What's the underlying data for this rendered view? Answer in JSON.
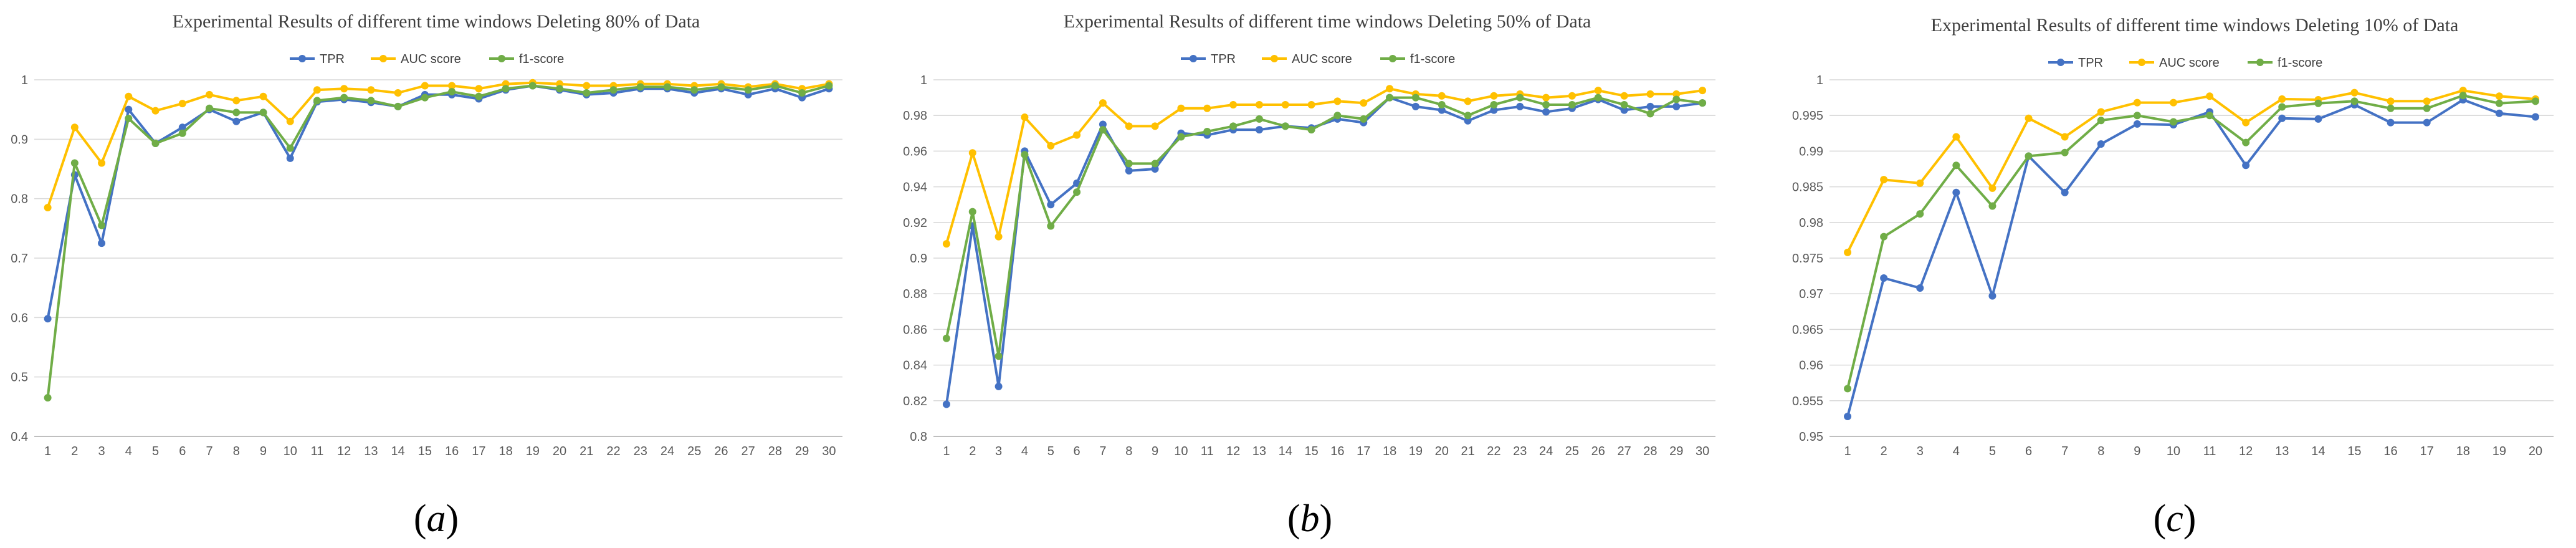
{
  "chart_data": [
    {
      "type": "line",
      "title": "Experimental Results of different time windows Deleting 80% of Data",
      "caption": {
        "open": "(",
        "letter": "a",
        "close": ")"
      },
      "x": [
        1,
        2,
        3,
        4,
        5,
        6,
        7,
        8,
        9,
        10,
        11,
        12,
        13,
        14,
        15,
        16,
        17,
        18,
        19,
        20,
        21,
        22,
        23,
        24,
        25,
        26,
        27,
        28,
        29,
        30
      ],
      "ylim": [
        0.4,
        1.0
      ],
      "yticks": [
        0.4,
        0.5,
        0.6,
        0.7,
        0.8,
        0.9,
        1
      ],
      "ytick_labels": [
        "0.4",
        "0.5",
        "0.6",
        "0.7",
        "0.8",
        "0.9",
        "1"
      ],
      "xlabel": "",
      "ylabel": "",
      "grid": true,
      "legend_position": "top-center",
      "series": [
        {
          "name": "TPR",
          "color": "#4472C4",
          "values": [
            0.598,
            0.84,
            0.725,
            0.95,
            0.893,
            0.92,
            0.95,
            0.93,
            0.945,
            0.868,
            0.963,
            0.967,
            0.962,
            0.955,
            0.975,
            0.975,
            0.968,
            0.983,
            0.99,
            0.983,
            0.975,
            0.978,
            0.985,
            0.985,
            0.978,
            0.985,
            0.975,
            0.985,
            0.97,
            0.985
          ]
        },
        {
          "name": "AUC score",
          "color": "#FFC000",
          "values": [
            0.785,
            0.92,
            0.86,
            0.972,
            0.948,
            0.96,
            0.975,
            0.965,
            0.972,
            0.93,
            0.983,
            0.985,
            0.983,
            0.978,
            0.99,
            0.99,
            0.985,
            0.993,
            0.995,
            0.993,
            0.99,
            0.99,
            0.993,
            0.993,
            0.99,
            0.993,
            0.988,
            0.993,
            0.985,
            0.993
          ]
        },
        {
          "name": "f1-score",
          "color": "#70AD47",
          "values": [
            0.465,
            0.86,
            0.755,
            0.935,
            0.893,
            0.91,
            0.952,
            0.945,
            0.945,
            0.885,
            0.965,
            0.97,
            0.965,
            0.955,
            0.97,
            0.98,
            0.972,
            0.985,
            0.99,
            0.985,
            0.978,
            0.983,
            0.988,
            0.988,
            0.983,
            0.988,
            0.983,
            0.99,
            0.978,
            0.99
          ]
        }
      ]
    },
    {
      "type": "line",
      "title": "Experimental Results of different time windows Deleting 50% of Data",
      "caption": {
        "open": "(",
        "letter": "b",
        "close": ")"
      },
      "x": [
        1,
        2,
        3,
        4,
        5,
        6,
        7,
        8,
        9,
        10,
        11,
        12,
        13,
        14,
        15,
        16,
        17,
        18,
        19,
        20,
        21,
        22,
        23,
        24,
        25,
        26,
        27,
        28,
        29,
        30
      ],
      "ylim": [
        0.8,
        1.0
      ],
      "yticks": [
        0.8,
        0.82,
        0.84,
        0.86,
        0.88,
        0.9,
        0.92,
        0.94,
        0.96,
        0.98,
        1
      ],
      "ytick_labels": [
        "0.8",
        "0.82",
        "0.84",
        "0.86",
        "0.88",
        "0.9",
        "0.92",
        "0.94",
        "0.96",
        "0.98",
        "1"
      ],
      "xlabel": "",
      "ylabel": "",
      "grid": true,
      "legend_position": "top-center",
      "series": [
        {
          "name": "TPR",
          "color": "#4472C4",
          "values": [
            0.818,
            0.918,
            0.828,
            0.96,
            0.93,
            0.942,
            0.975,
            0.949,
            0.95,
            0.97,
            0.969,
            0.972,
            0.972,
            0.974,
            0.973,
            0.978,
            0.976,
            0.99,
            0.985,
            0.983,
            0.977,
            0.983,
            0.985,
            0.982,
            0.984,
            0.989,
            0.983,
            0.985,
            0.985,
            0.987
          ]
        },
        {
          "name": "AUC score",
          "color": "#FFC000",
          "values": [
            0.908,
            0.959,
            0.912,
            0.979,
            0.963,
            0.969,
            0.987,
            0.974,
            0.974,
            0.984,
            0.984,
            0.986,
            0.986,
            0.986,
            0.986,
            0.988,
            0.987,
            0.995,
            0.992,
            0.991,
            0.988,
            0.991,
            0.992,
            0.99,
            0.991,
            0.994,
            0.991,
            0.992,
            0.992,
            0.994
          ]
        },
        {
          "name": "f1-score",
          "color": "#70AD47",
          "values": [
            0.855,
            0.926,
            0.845,
            0.958,
            0.918,
            0.937,
            0.972,
            0.953,
            0.953,
            0.968,
            0.971,
            0.974,
            0.978,
            0.974,
            0.972,
            0.98,
            0.978,
            0.99,
            0.99,
            0.986,
            0.98,
            0.986,
            0.99,
            0.986,
            0.986,
            0.99,
            0.986,
            0.981,
            0.989,
            0.987
          ]
        }
      ]
    },
    {
      "type": "line",
      "title": "Experimental Results of different time windows Deleting 10% of Data",
      "caption": {
        "open": "(",
        "letter": "c",
        "close": ")"
      },
      "x": [
        1,
        2,
        3,
        4,
        5,
        6,
        7,
        8,
        9,
        10,
        11,
        12,
        13,
        14,
        15,
        16,
        17,
        18,
        19,
        20
      ],
      "ylim": [
        0.95,
        1.0
      ],
      "yticks": [
        0.95,
        0.955,
        0.96,
        0.965,
        0.97,
        0.975,
        0.98,
        0.985,
        0.99,
        0.995,
        1
      ],
      "ytick_labels": [
        "0.95",
        "0.955",
        "0.96",
        "0.965",
        "0.97",
        "0.975",
        "0.98",
        "0.985",
        "0.99",
        "0.995",
        "1"
      ],
      "xlabel": "",
      "ylabel": "",
      "grid": true,
      "legend_position": "top-center",
      "series": [
        {
          "name": "TPR",
          "color": "#4472C4",
          "values": [
            0.9528,
            0.9722,
            0.9708,
            0.9842,
            0.9697,
            0.9893,
            0.9842,
            0.991,
            0.9938,
            0.9937,
            0.9955,
            0.988,
            0.9946,
            0.9945,
            0.9965,
            0.994,
            0.994,
            0.9972,
            0.9953,
            0.9948
          ]
        },
        {
          "name": "AUC score",
          "color": "#FFC000",
          "values": [
            0.9758,
            0.986,
            0.9855,
            0.992,
            0.9848,
            0.9946,
            0.992,
            0.9955,
            0.9968,
            0.9968,
            0.9977,
            0.994,
            0.9973,
            0.9972,
            0.9982,
            0.997,
            0.997,
            0.9985,
            0.9977,
            0.9973
          ]
        },
        {
          "name": "f1-score",
          "color": "#70AD47",
          "values": [
            0.9567,
            0.978,
            0.9812,
            0.988,
            0.9823,
            0.9893,
            0.9898,
            0.9943,
            0.995,
            0.9941,
            0.995,
            0.9912,
            0.9962,
            0.9967,
            0.997,
            0.996,
            0.996,
            0.9978,
            0.9967,
            0.997
          ]
        }
      ]
    }
  ]
}
